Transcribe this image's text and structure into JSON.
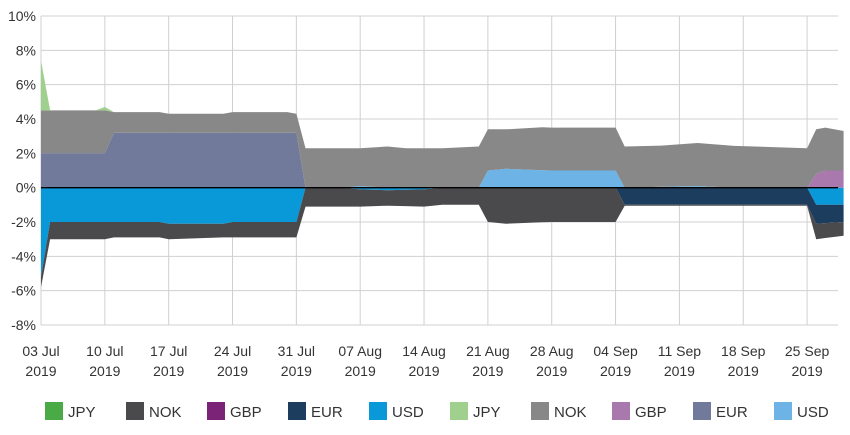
{
  "chart_data": {
    "type": "area",
    "title": "",
    "xlabel": "",
    "ylabel": "",
    "ylim": [
      -8,
      10
    ],
    "y_ticks": [
      "10%",
      "8%",
      "6%",
      "4%",
      "2%",
      "0%",
      "-2%",
      "-4%",
      "-6%",
      "-8%"
    ],
    "y_tick_values": [
      10,
      8,
      6,
      4,
      2,
      0,
      -2,
      -4,
      -6,
      -8
    ],
    "x_ticks": [
      {
        "day": 0,
        "line1": "03 Jul",
        "line2": "2019"
      },
      {
        "day": 7,
        "line1": "10 Jul",
        "line2": "2019"
      },
      {
        "day": 14,
        "line1": "17 Jul",
        "line2": "2019"
      },
      {
        "day": 21,
        "line1": "24 Jul",
        "line2": "2019"
      },
      {
        "day": 28,
        "line1": "31 Jul",
        "line2": "2019"
      },
      {
        "day": 35,
        "line1": "07 Aug",
        "line2": "2019"
      },
      {
        "day": 42,
        "line1": "14 Aug",
        "line2": "2019"
      },
      {
        "day": 49,
        "line1": "21 Aug",
        "line2": "2019"
      },
      {
        "day": 56,
        "line1": "28 Aug",
        "line2": "2019"
      },
      {
        "day": 63,
        "line1": "04 Sep",
        "line2": "2019"
      },
      {
        "day": 70,
        "line1": "11 Sep",
        "line2": "2019"
      },
      {
        "day": 77,
        "line1": "18 Sep",
        "line2": "2019"
      },
      {
        "day": 84,
        "line1": "25 Sep",
        "line2": "2019"
      }
    ],
    "x_range": [
      0,
      88
    ],
    "grid": true,
    "legend_position": "bottom",
    "legend": [
      {
        "label": "JPY",
        "color": "#4aaa46"
      },
      {
        "label": "NOK",
        "color": "#4a4a4c"
      },
      {
        "label": "GBP",
        "color": "#7b2477"
      },
      {
        "label": "EUR",
        "color": "#1d3d5f"
      },
      {
        "label": "USD",
        "color": "#0a99d8"
      },
      {
        "label": "JPY",
        "color": "#9fd08d"
      },
      {
        "label": "NOK",
        "color": "#888888"
      },
      {
        "label": "GBP",
        "color": "#a978ad"
      },
      {
        "label": "EUR",
        "color": "#727a9c"
      },
      {
        "label": "USD",
        "color": "#6db3e6"
      }
    ],
    "series": [
      {
        "group": "positive",
        "name": "EUR",
        "color": "#727a9c",
        "points": [
          [
            0,
            2
          ],
          [
            7,
            2
          ],
          [
            8,
            3.2
          ],
          [
            28,
            3.2
          ],
          [
            29,
            0
          ],
          [
            88,
            0
          ]
        ]
      },
      {
        "group": "positive",
        "name": "USD",
        "color": "#6db3e6",
        "points": [
          [
            0,
            0
          ],
          [
            33,
            0
          ],
          [
            35,
            0.1
          ],
          [
            38,
            0
          ],
          [
            48,
            0
          ],
          [
            49,
            1
          ],
          [
            51,
            1.1
          ],
          [
            56,
            1.0
          ],
          [
            63,
            1.0
          ],
          [
            64,
            0
          ],
          [
            68,
            0.05
          ],
          [
            72,
            0.1
          ],
          [
            76,
            0
          ],
          [
            88,
            0
          ]
        ]
      },
      {
        "group": "positive",
        "name": "GBP",
        "color": "#a978ad",
        "points": [
          [
            0,
            0
          ],
          [
            84,
            0
          ],
          [
            85,
            0.8
          ],
          [
            86,
            1.0
          ],
          [
            88,
            1.0
          ]
        ]
      },
      {
        "group": "positive",
        "name": "NOK",
        "color": "#888888",
        "points": [
          [
            0,
            2.5
          ],
          [
            7,
            2.5
          ],
          [
            8,
            1.2
          ],
          [
            13,
            1.2
          ],
          [
            14,
            1.1
          ],
          [
            20,
            1.1
          ],
          [
            21,
            1.2
          ],
          [
            27,
            1.2
          ],
          [
            28,
            1.1
          ],
          [
            29,
            2.3
          ],
          [
            33,
            2.3
          ],
          [
            35,
            2.2
          ],
          [
            38,
            2.4
          ],
          [
            40,
            2.3
          ],
          [
            42,
            2.3
          ],
          [
            44,
            2.3
          ],
          [
            48,
            2.4
          ],
          [
            49,
            2.4
          ],
          [
            51,
            2.3
          ],
          [
            55,
            2.5
          ],
          [
            63,
            2.5
          ],
          [
            64,
            2.4
          ],
          [
            68,
            2.4
          ],
          [
            72,
            2.5
          ],
          [
            84,
            2.3
          ],
          [
            85,
            2.6
          ],
          [
            88,
            2.3
          ]
        ]
      },
      {
        "group": "positive",
        "name": "JPY",
        "color": "#9fd08d",
        "points": [
          [
            0,
            2.9
          ],
          [
            1,
            0
          ],
          [
            6,
            0
          ],
          [
            7,
            0.2
          ],
          [
            8,
            0
          ],
          [
            88,
            0
          ]
        ]
      },
      {
        "group": "negative",
        "name": "USD",
        "color": "#0a99d8",
        "points": [
          [
            0,
            -5.2
          ],
          [
            1,
            -2.0
          ],
          [
            7,
            -2.0
          ],
          [
            8,
            -2.0
          ],
          [
            13,
            -2.0
          ],
          [
            14,
            -2.1
          ],
          [
            20,
            -2.1
          ],
          [
            21,
            -2.0
          ],
          [
            27,
            -2.0
          ],
          [
            28,
            -2.0
          ],
          [
            29,
            0
          ],
          [
            33,
            0
          ],
          [
            35,
            -0.1
          ],
          [
            38,
            -0.15
          ],
          [
            42,
            -0.1
          ],
          [
            44,
            0
          ],
          [
            84,
            0
          ],
          [
            85,
            -1.0
          ],
          [
            88,
            -1.0
          ]
        ]
      },
      {
        "group": "negative",
        "name": "EUR",
        "color": "#1d3d5f",
        "points": [
          [
            0,
            0
          ],
          [
            63,
            0
          ],
          [
            64,
            -1.0
          ],
          [
            84,
            -1.0
          ],
          [
            85,
            -1.1
          ],
          [
            88,
            -1.0
          ]
        ]
      },
      {
        "group": "negative",
        "name": "NOK",
        "color": "#4a4a4c",
        "points": [
          [
            0,
            -0.6
          ],
          [
            1,
            -1.0
          ],
          [
            7,
            -1.0
          ],
          [
            8,
            -0.9
          ],
          [
            13,
            -0.9
          ],
          [
            14,
            -0.9
          ],
          [
            20,
            -0.8
          ],
          [
            21,
            -0.9
          ],
          [
            27,
            -0.9
          ],
          [
            28,
            -0.9
          ],
          [
            29,
            -1.1
          ],
          [
            33,
            -1.1
          ],
          [
            35,
            -1.0
          ],
          [
            38,
            -0.9
          ],
          [
            42,
            -1.0
          ],
          [
            44,
            -1.0
          ],
          [
            48,
            -1.0
          ],
          [
            49,
            -2.0
          ],
          [
            51,
            -2.1
          ],
          [
            56,
            -2.0
          ],
          [
            63,
            -2.0
          ],
          [
            64,
            -0.05
          ],
          [
            84,
            -0.05
          ],
          [
            85,
            -0.9
          ],
          [
            88,
            -0.8
          ]
        ]
      },
      {
        "group": "negative",
        "name": "GBP",
        "color": "#7b2477",
        "points": [
          [
            0,
            0
          ],
          [
            88,
            0
          ]
        ]
      }
    ]
  }
}
